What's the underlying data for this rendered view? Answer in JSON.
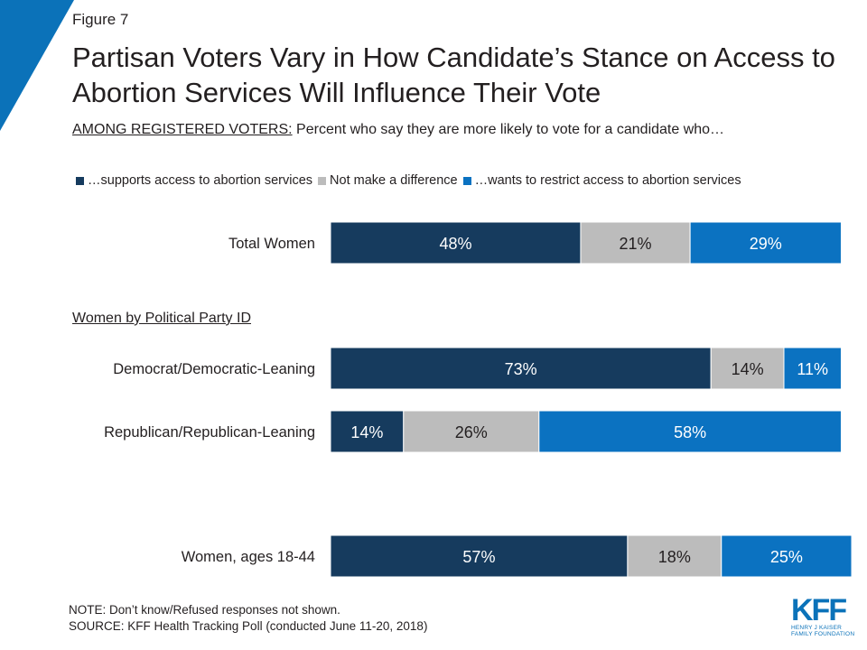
{
  "figure_label": "Figure 7",
  "title": "Partisan Voters Vary in How Candidate’s Stance on Access to Abortion Services Will Influence Their Vote",
  "subtitle_underlined": "AMONG REGISTERED VOTERS:",
  "subtitle_rest": " Percent who say they are more likely to vote for a candidate who…",
  "section_label": "Women by Political Party ID",
  "note_line1": "NOTE: Don’t know/Refused responses not shown.",
  "note_line2": "SOURCE: KFF Health Tracking Poll (conducted June 11-20, 2018)",
  "logo": {
    "mark": "KFF",
    "line1": "HENRY J KAISER",
    "line2": "FAMILY FOUNDATION"
  },
  "colors": {
    "supports": "#163b5e",
    "no_difference": "#bcbcbc",
    "restrict": "#0b72c1",
    "accent": "#0b72b9"
  },
  "chart_data": {
    "type": "bar",
    "orientation": "horizontal",
    "stacked": true,
    "categories": [
      "Total Women",
      "Democrat/Democratic-Leaning",
      "Republican/Republican-Leaning",
      "Women, ages 18-44"
    ],
    "series": [
      {
        "name": "…supports  access to abortion services",
        "values": [
          48,
          73,
          14,
          57
        ]
      },
      {
        "name": "Not make a difference",
        "values": [
          21,
          14,
          26,
          18
        ]
      },
      {
        "name": "…wants  to restrict access to abortion services",
        "values": [
          29,
          11,
          58,
          25
        ]
      }
    ],
    "unit": "%",
    "legend": "top"
  }
}
